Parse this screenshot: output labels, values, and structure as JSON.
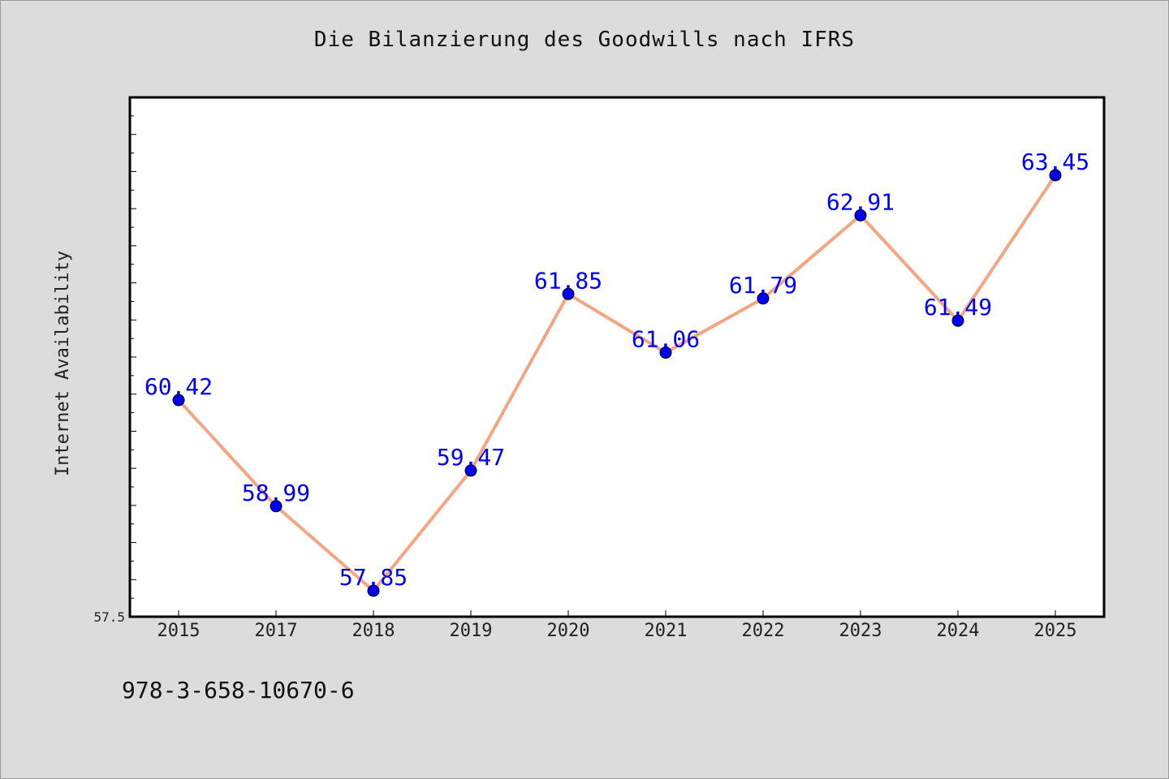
{
  "chart_data": {
    "type": "line",
    "title": "Die Bilanzierung des Goodwills nach IFRS",
    "xlabel": "",
    "ylabel": "Internet Availability",
    "categories": [
      "2015",
      "2017",
      "2018",
      "2019",
      "2020",
      "2021",
      "2022",
      "2023",
      "2024",
      "2025"
    ],
    "series": [
      {
        "values": [
          60.42,
          58.99,
          57.85,
          59.47,
          61.85,
          61.06,
          61.79,
          62.91,
          61.49,
          63.45
        ]
      }
    ],
    "data_labels": [
      "60.42",
      "58.99",
      "57.85",
      "59.47",
      "61.85",
      "61.06",
      "61.79",
      "62.91",
      "61.49",
      "63.45"
    ],
    "ylim": [
      57.5,
      64.5
    ],
    "y_tick_labels": [
      "57.5"
    ],
    "grid": false,
    "legend": "none",
    "colors": {
      "line": "#f4a582",
      "marker": "#0000ee",
      "label": "#0000ff",
      "plot_bg": "#ffffff",
      "page_bg": "#dcdcdc"
    }
  },
  "footer": {
    "caption": "978-3-658-10670-6"
  }
}
